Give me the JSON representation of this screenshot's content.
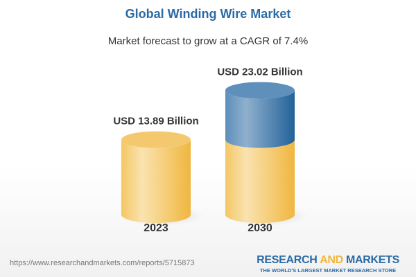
{
  "header": {
    "title": "Global Winding Wire Market",
    "subtitle": "Market forecast to grow at a CAGR of 7.4%"
  },
  "chart_data": {
    "type": "bar",
    "style": "3d-cylinder",
    "title": "Global Winding Wire Market",
    "subtitle": "Market forecast to grow at a CAGR of 7.4%",
    "categories": [
      "2023",
      "2030"
    ],
    "values": [
      13.89,
      23.02
    ],
    "unit": "USD Billion",
    "data_labels": [
      "USD 13.89 Billion",
      "USD 23.02 Billion"
    ],
    "grid": false,
    "colors": {
      "base": "#f2c155",
      "growth": "#2f6ea5"
    }
  },
  "footer": {
    "url": "https://www.researchandmarkets.com/reports/5715873",
    "logo_part1": "RESEARCH ",
    "logo_part2": "AND",
    "logo_part3": " MARKETS",
    "tagline": "THE WORLD'S LARGEST MARKET RESEARCH STORE"
  }
}
